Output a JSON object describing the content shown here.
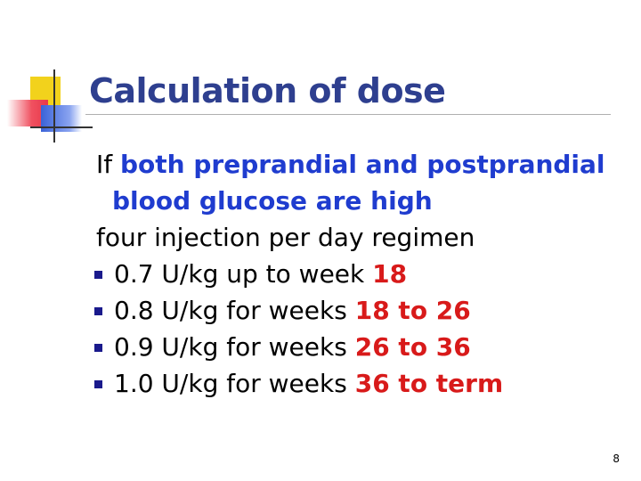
{
  "slide": {
    "title": "Calculation of dose",
    "intro": {
      "prefix": "If ",
      "emph_line1": "both preprandial and postprandial",
      "emph_line2": "blood glucose are high"
    },
    "regimen": "four injection per day regimen",
    "bullets": [
      {
        "dose": "0.7",
        "text": " U/kg up to week ",
        "weeks": "18"
      },
      {
        "dose": "0.8",
        "text": " U/kg for weeks ",
        "weeks": "18 to 26"
      },
      {
        "dose": "0.9",
        "text": " U/kg for weeks ",
        "weeks": "26 to 36"
      },
      {
        "dose": "1.0",
        "text": " U/kg for weeks ",
        "weeks": "36 to term"
      }
    ],
    "page_number": "8"
  },
  "colors": {
    "title": "#2e3f8f",
    "emphasis_blue": "#1f3ccf",
    "emphasis_red": "#d81a1a",
    "bullet": "#1a1a8c"
  }
}
